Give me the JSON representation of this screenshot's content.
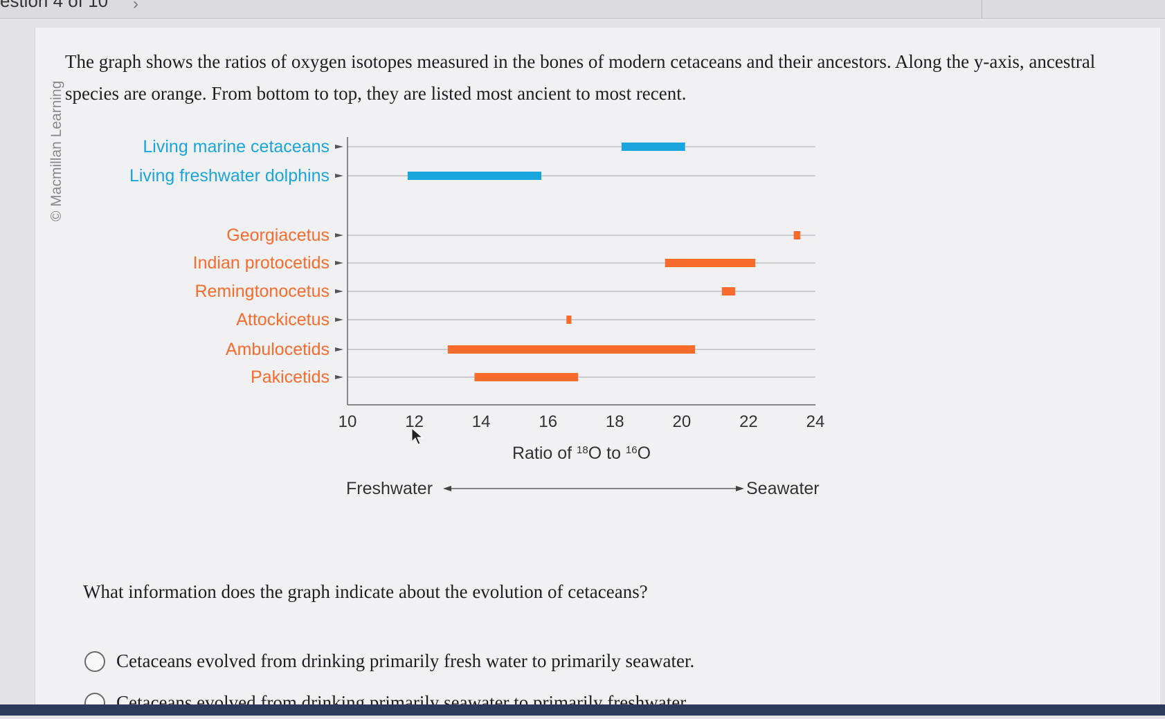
{
  "nav": {
    "question_counter": "estion 4 of 10",
    "next_symbol": "›"
  },
  "copyright": "© Macmillan Learning",
  "intro_text": "The graph shows the ratios of oxygen isotopes measured in the bones of modern cetaceans and their ancestors. Along the y-axis, ancestral species are orange. From bottom to top, they are listed most ancient to most recent.",
  "chart_data": {
    "type": "range-bar",
    "xlabel_prefix": "Ratio of ",
    "xlabel_sup1": "18",
    "xlabel_mid": "O to ",
    "xlabel_sup2": "16",
    "xlabel_suffix": "O",
    "xlim": [
      10,
      24
    ],
    "x_ticks": [
      "10",
      "12",
      "14",
      "16",
      "18",
      "20",
      "22",
      "24"
    ],
    "colors": {
      "modern": "#1aa5dc",
      "ancestral": "#f76b2d"
    },
    "rows": [
      {
        "label": "Living marine cetaceans",
        "group": "modern",
        "start": 18.2,
        "end": 20.1
      },
      {
        "label": "Living freshwater dolphins",
        "group": "modern",
        "start": 11.8,
        "end": 15.8
      },
      {
        "label": "Georgiacetus",
        "group": "ancestral",
        "start": 23.35,
        "end": 23.55
      },
      {
        "label": "Indian protocetids",
        "group": "ancestral",
        "start": 19.5,
        "end": 22.2
      },
      {
        "label": "Remingtonocetus",
        "group": "ancestral",
        "start": 21.2,
        "end": 21.6
      },
      {
        "label": "Attockicetus",
        "group": "ancestral",
        "start": 16.55,
        "end": 16.7
      },
      {
        "label": "Ambulocetids",
        "group": "ancestral",
        "start": 13.0,
        "end": 20.4
      },
      {
        "label": "Pakicetids",
        "group": "ancestral",
        "start": 13.8,
        "end": 16.9
      }
    ],
    "scale_left": "Freshwater",
    "scale_right": "Seawater"
  },
  "question": "What information does the graph indicate about the evolution of cetaceans?",
  "options": [
    "Cetaceans evolved from drinking primarily fresh water to primarily seawater.",
    "Cetaceans evolved from drinking primarily seawater to primarily freshwater."
  ]
}
